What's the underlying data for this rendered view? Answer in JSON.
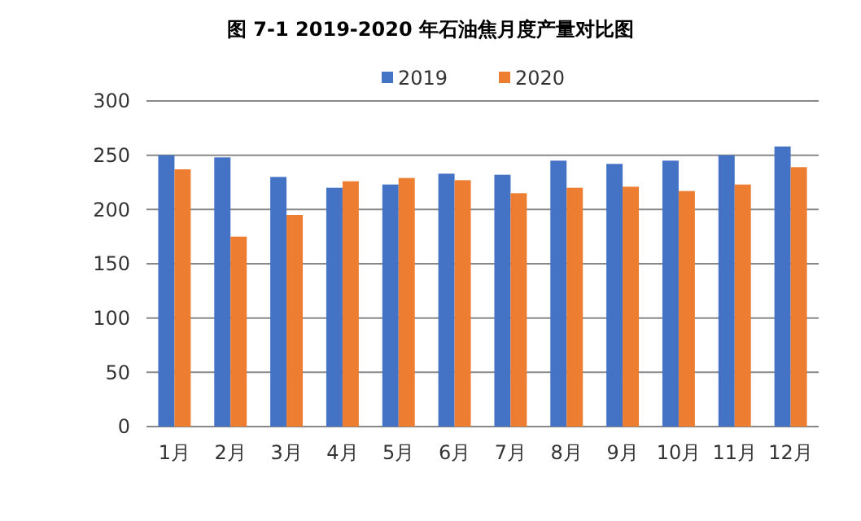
{
  "chart_data": {
    "type": "bar",
    "title": "图 7-1  2019-2020 年石油焦月度产量对比图",
    "categories": [
      "1月",
      "2月",
      "3月",
      "4月",
      "5月",
      "6月",
      "7月",
      "8月",
      "9月",
      "10月",
      "11月",
      "12月"
    ],
    "series": [
      {
        "name": "2019",
        "color": "#4472c4",
        "values": [
          250,
          248,
          230,
          220,
          223,
          233,
          232,
          245,
          242,
          245,
          250,
          258
        ]
      },
      {
        "name": "2020",
        "color": "#ed7d31",
        "values": [
          237,
          175,
          195,
          226,
          229,
          227,
          215,
          220,
          221,
          217,
          223,
          239
        ]
      }
    ],
    "ylim": [
      0,
      300
    ],
    "yticks": [
      0,
      50,
      100,
      150,
      200,
      250,
      300
    ],
    "grid": "y",
    "legend": "top"
  }
}
